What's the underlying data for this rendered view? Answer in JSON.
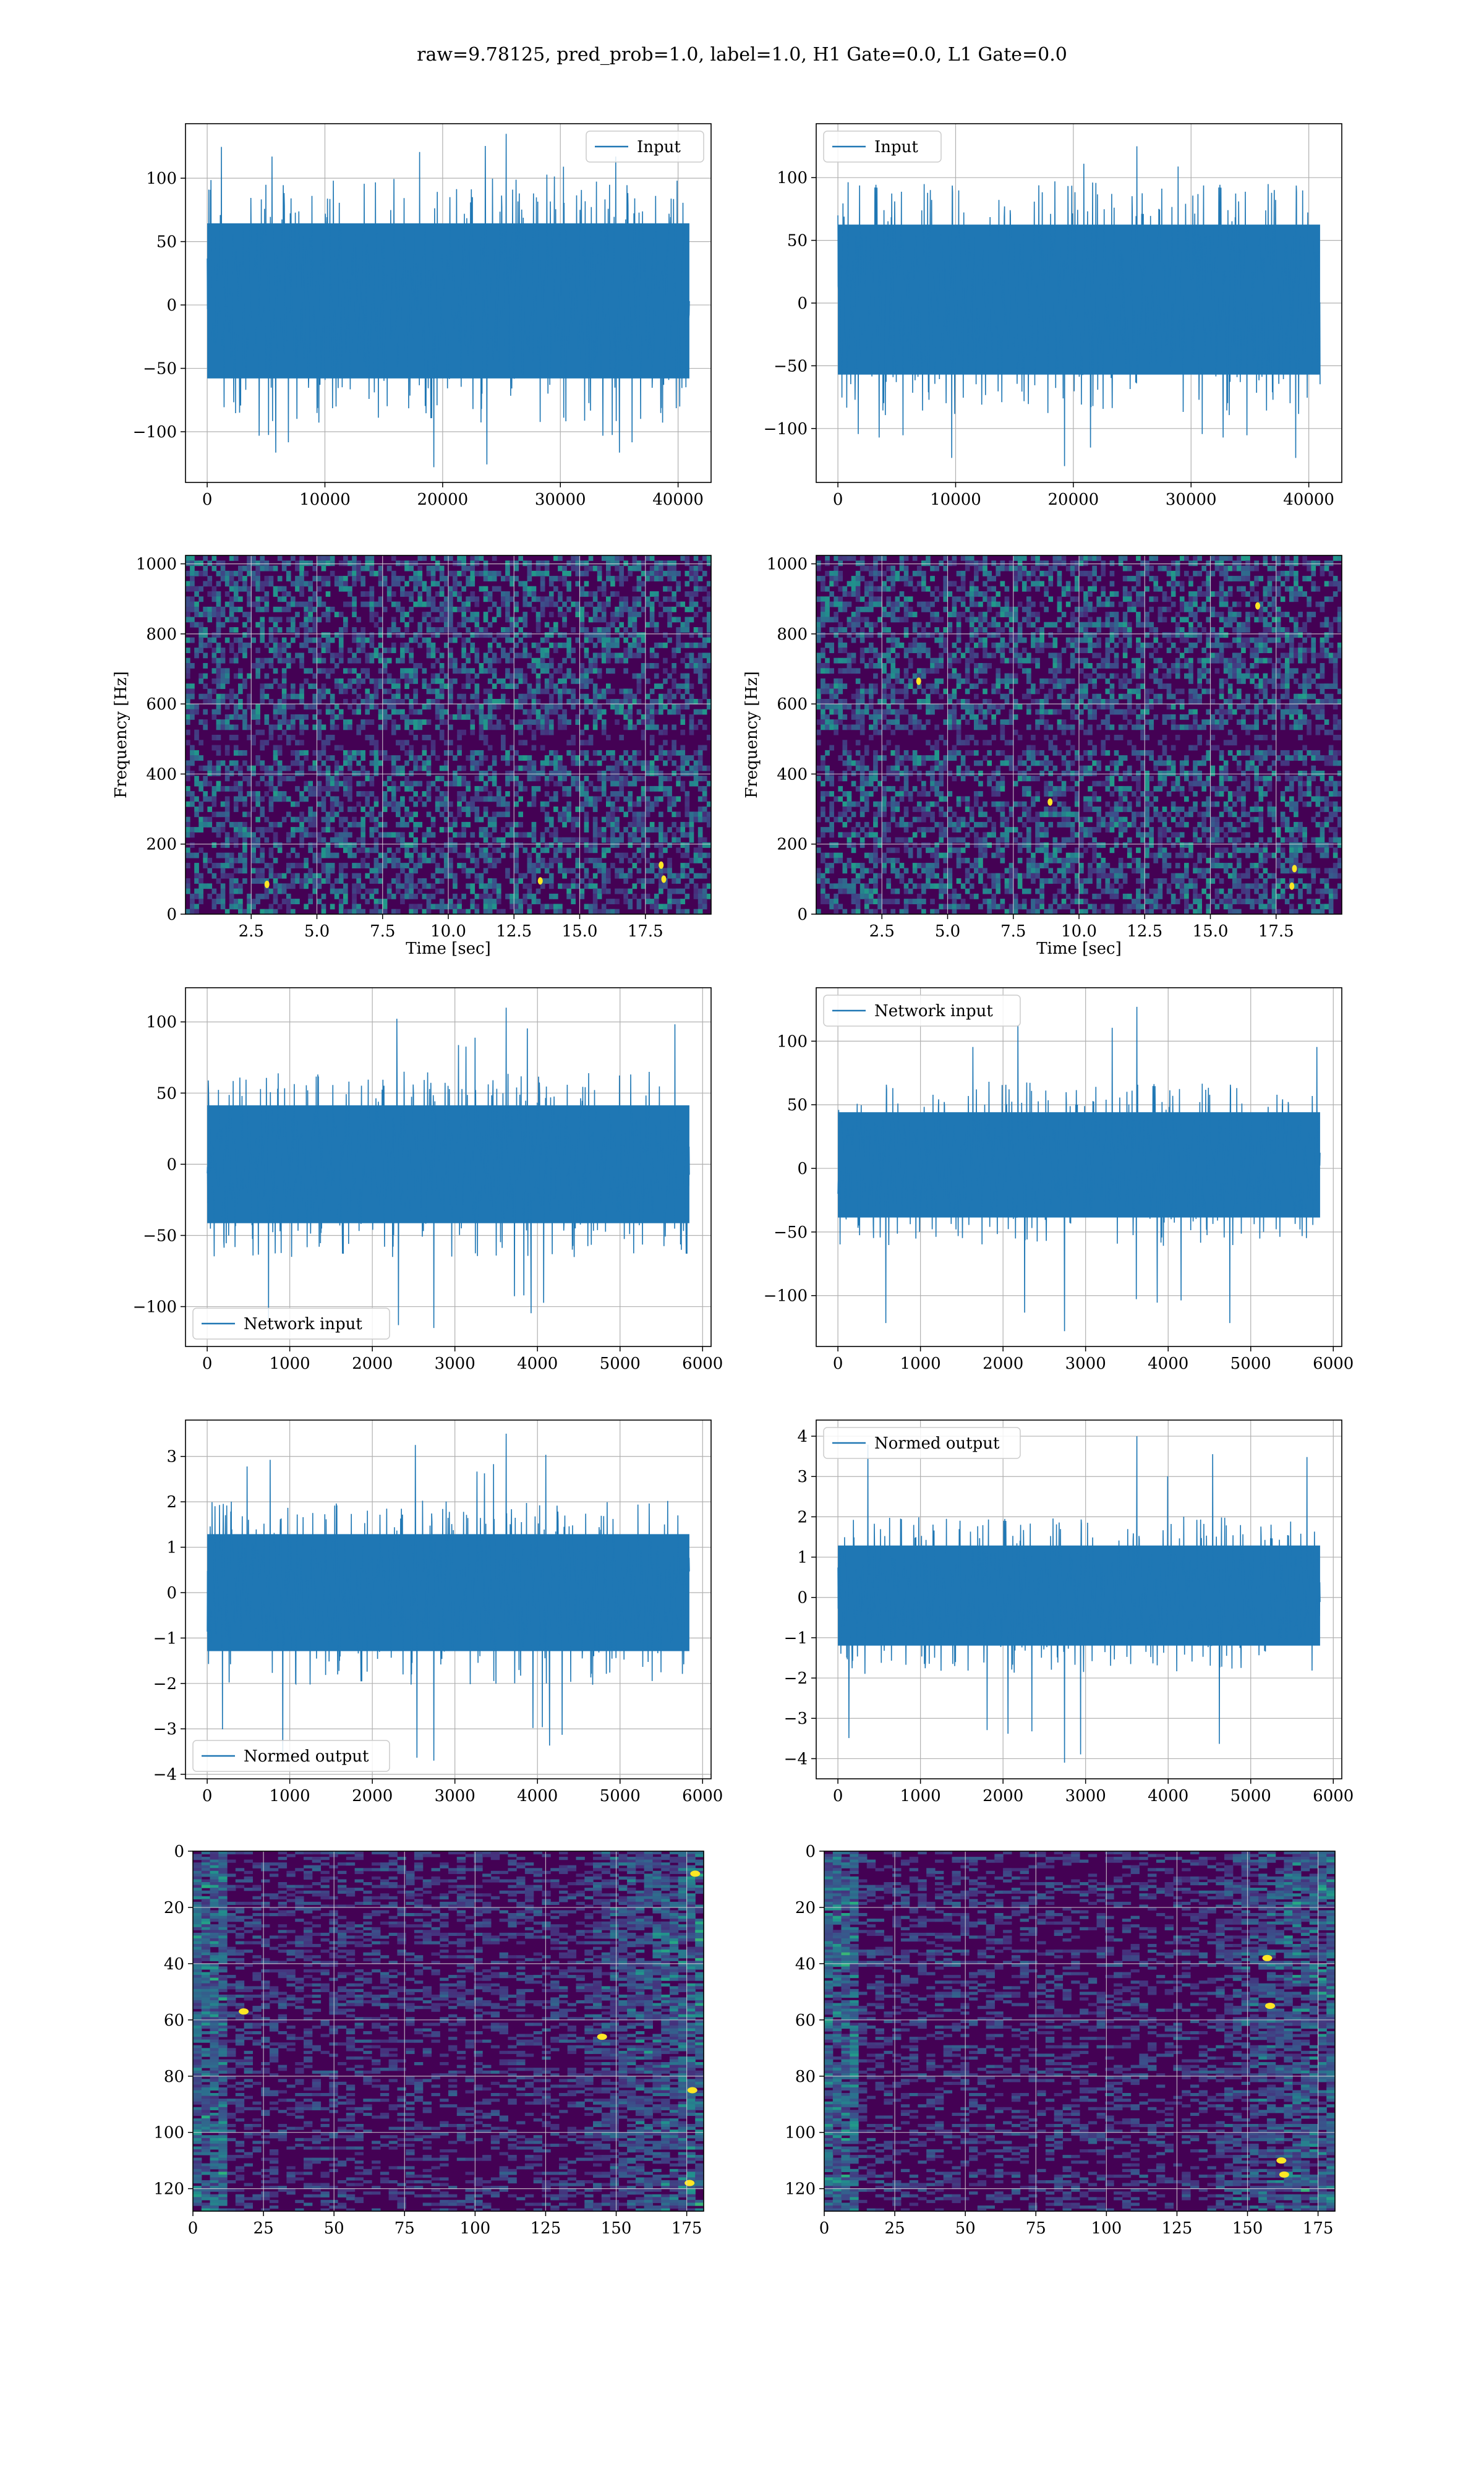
{
  "title": "raw=9.78125, pred_prob=1.0, label=1.0, H1 Gate=0.0, L1 Gate=0.0",
  "colors": {
    "line": "#1f77b4",
    "grid": "#b0b0b0",
    "viridis_low": "#440154",
    "viridis_mid": "#21918c",
    "viridis_high": "#fde725"
  },
  "chart_data": [
    {
      "type": "line",
      "id": "input_h1",
      "legend": "Input",
      "legend_loc": "upper right",
      "x_range": [
        0,
        40960
      ],
      "ylim": [
        -140,
        143
      ],
      "xticks": [
        0,
        10000,
        20000,
        30000,
        40000
      ],
      "yticks": [
        -100,
        -50,
        0,
        50,
        100
      ],
      "y_labels": [
        "−100",
        "−50",
        "0",
        "50",
        "100"
      ],
      "band": [
        -63,
        70
      ],
      "peak_max": 135,
      "peak_min": -128
    },
    {
      "type": "line",
      "id": "input_l1",
      "legend": "Input",
      "legend_loc": "upper left",
      "x_range": [
        0,
        40960
      ],
      "ylim": [
        -143,
        143
      ],
      "xticks": [
        0,
        10000,
        20000,
        30000,
        40000
      ],
      "yticks": [
        -100,
        -50,
        0,
        50,
        100
      ],
      "y_labels": [
        "−100",
        "−50",
        "0",
        "50",
        "100"
      ],
      "band": [
        -62,
        68
      ],
      "peak_max": 125,
      "peak_min": -130
    },
    {
      "type": "heatmap",
      "id": "spec_h1",
      "xlabel": "Time [sec]",
      "ylabel": "Frequency [Hz]",
      "xlim": [
        0,
        20
      ],
      "ylim": [
        0,
        1024
      ],
      "xticks": [
        2.5,
        5,
        7.5,
        10,
        12.5,
        15,
        17.5
      ],
      "x_labels": [
        "2.5",
        "5.0",
        "7.5",
        "10.0",
        "12.5",
        "15.0",
        "17.5"
      ],
      "yticks": [
        0,
        200,
        400,
        600,
        800,
        1000
      ],
      "hot_spots": [
        [
          18.2,
          100
        ],
        [
          18.1,
          140
        ],
        [
          3.1,
          85
        ],
        [
          13.5,
          95
        ]
      ]
    },
    {
      "type": "heatmap",
      "id": "spec_l1",
      "xlabel": "Time [sec]",
      "ylabel": "Frequency [Hz]",
      "xlim": [
        0,
        20
      ],
      "ylim": [
        0,
        1024
      ],
      "xticks": [
        2.5,
        5,
        7.5,
        10,
        12.5,
        15,
        17.5
      ],
      "x_labels": [
        "2.5",
        "5.0",
        "7.5",
        "10.0",
        "12.5",
        "15.0",
        "17.5"
      ],
      "yticks": [
        0,
        200,
        400,
        600,
        800,
        1000
      ],
      "hot_spots": [
        [
          3.9,
          665
        ],
        [
          18.1,
          80
        ],
        [
          18.2,
          130
        ],
        [
          8.9,
          320
        ],
        [
          16.8,
          880
        ]
      ]
    },
    {
      "type": "line",
      "id": "net_h1",
      "legend": "Network input",
      "legend_loc": "lower left",
      "x_range": [
        0,
        5840
      ],
      "ylim": [
        -128,
        124
      ],
      "xticks": [
        0,
        1000,
        2000,
        3000,
        4000,
        5000,
        6000
      ],
      "yticks": [
        -100,
        -50,
        0,
        50,
        100
      ],
      "y_labels": [
        "−100",
        "−50",
        "0",
        "50",
        "100"
      ],
      "band": [
        -45,
        45
      ],
      "peak_max": 110,
      "peak_min": -115
    },
    {
      "type": "line",
      "id": "net_l1",
      "legend": "Network input",
      "legend_loc": "upper left",
      "x_range": [
        0,
        5840
      ],
      "ylim": [
        -140,
        142
      ],
      "xticks": [
        0,
        1000,
        2000,
        3000,
        4000,
        5000,
        6000
      ],
      "yticks": [
        -100,
        -50,
        0,
        50,
        100
      ],
      "y_labels": [
        "−100",
        "−50",
        "0",
        "50",
        "100"
      ],
      "band": [
        -42,
        48
      ],
      "peak_max": 127,
      "peak_min": -128
    },
    {
      "type": "line",
      "id": "norm_h1",
      "legend": "Normed output",
      "legend_loc": "lower left",
      "x_range": [
        0,
        5840
      ],
      "ylim": [
        -4.1,
        3.8
      ],
      "xticks": [
        0,
        1000,
        2000,
        3000,
        4000,
        5000,
        6000
      ],
      "yticks": [
        -4,
        -3,
        -2,
        -1,
        0,
        1,
        2,
        3
      ],
      "y_labels": [
        "−4",
        "−3",
        "−2",
        "−1",
        "0",
        "1",
        "2",
        "3"
      ],
      "band": [
        -1.4,
        1.4
      ],
      "peak_max": 3.5,
      "peak_min": -3.7
    },
    {
      "type": "line",
      "id": "norm_l1",
      "legend": "Normed output",
      "legend_loc": "upper left",
      "x_range": [
        0,
        5840
      ],
      "ylim": [
        -4.5,
        4.4
      ],
      "xticks": [
        0,
        1000,
        2000,
        3000,
        4000,
        5000,
        6000
      ],
      "yticks": [
        -4,
        -3,
        -2,
        -1,
        0,
        1,
        2,
        3,
        4
      ],
      "y_labels": [
        "−4",
        "−3",
        "−2",
        "−1",
        "0",
        "1",
        "2",
        "3",
        "4"
      ],
      "band": [
        -1.3,
        1.4
      ],
      "peak_max": 4.0,
      "peak_min": -4.1
    },
    {
      "type": "heatmap",
      "id": "feat_h1",
      "xlim": [
        0,
        181
      ],
      "ylim": [
        128,
        0
      ],
      "xticks": [
        0,
        25,
        50,
        75,
        100,
        125,
        150,
        175
      ],
      "yticks": [
        0,
        20,
        40,
        60,
        80,
        100,
        120
      ],
      "hot_spots": [
        [
          178,
          8
        ],
        [
          177,
          85
        ],
        [
          176,
          118
        ],
        [
          145,
          66
        ],
        [
          18,
          57
        ]
      ]
    },
    {
      "type": "heatmap",
      "id": "feat_l1",
      "xlim": [
        0,
        181
      ],
      "ylim": [
        128,
        0
      ],
      "xticks": [
        0,
        25,
        50,
        75,
        100,
        125,
        150,
        175
      ],
      "yticks": [
        0,
        20,
        40,
        60,
        80,
        100,
        120
      ],
      "hot_spots": [
        [
          162,
          110
        ],
        [
          163,
          115
        ],
        [
          158,
          55
        ],
        [
          157,
          38
        ]
      ]
    }
  ]
}
